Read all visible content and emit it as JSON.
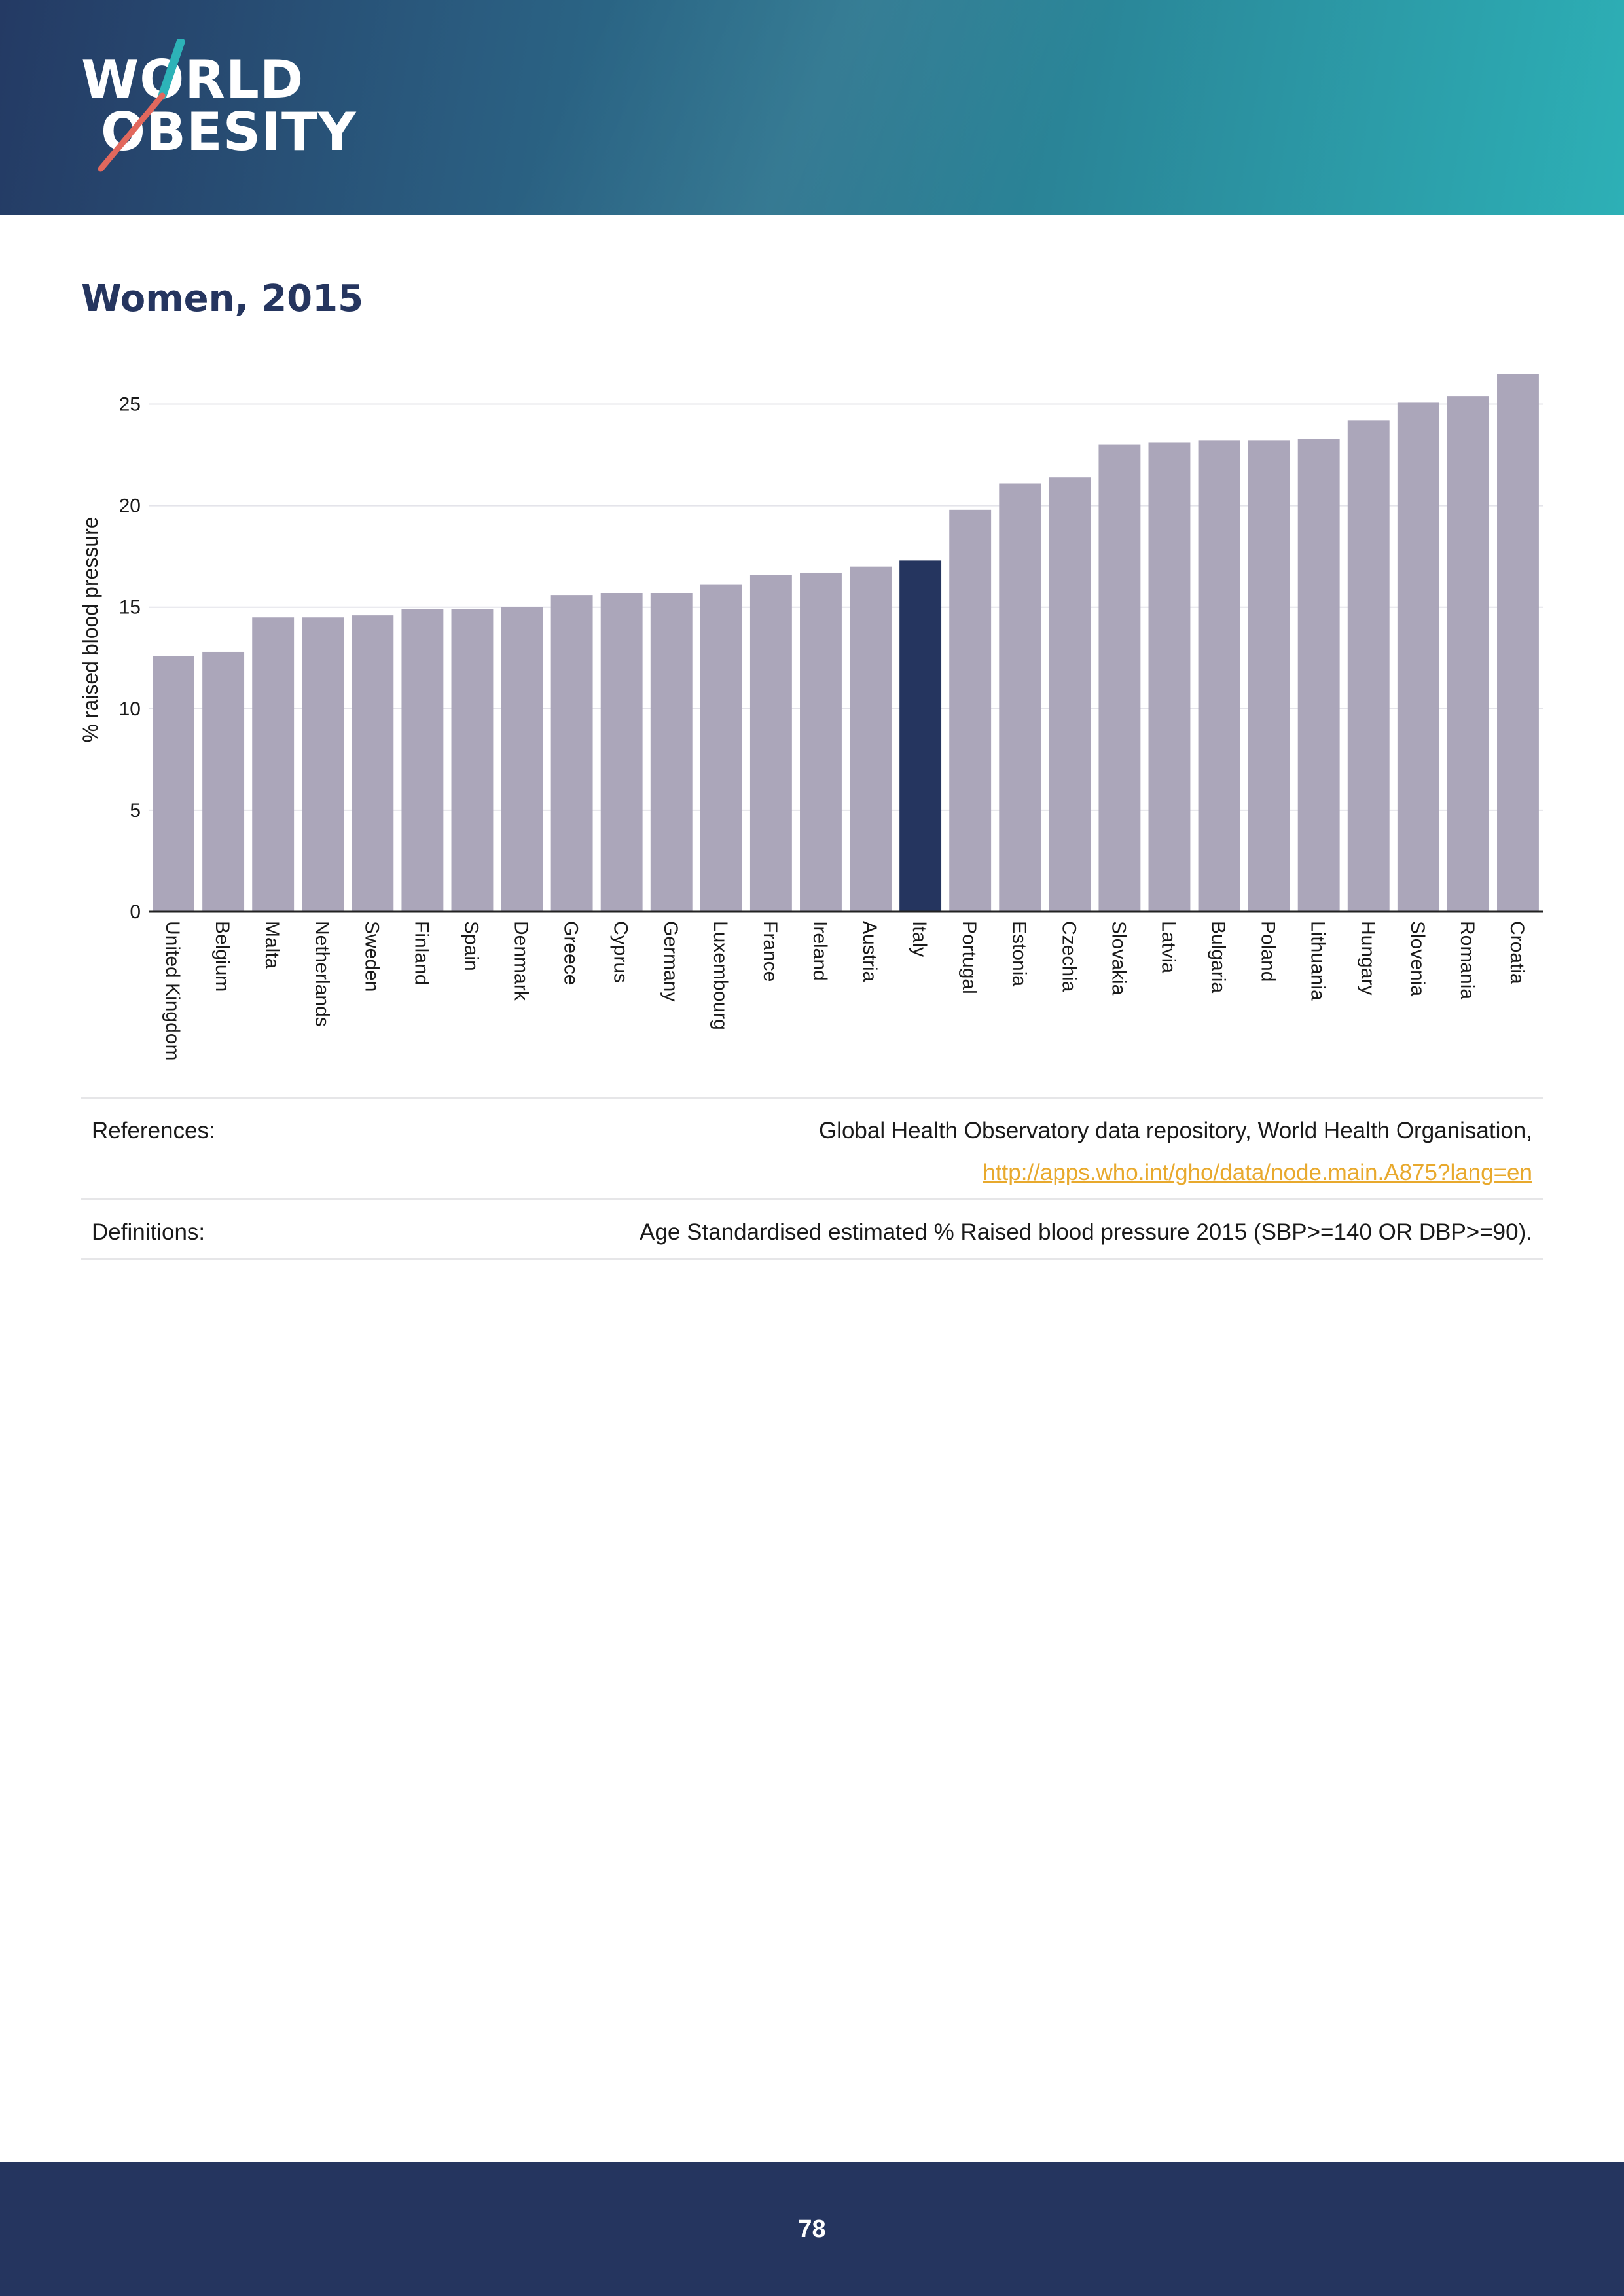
{
  "header": {
    "logo_line1": "WORLD",
    "logo_line2": "OBESITY",
    "gradient_start": "#243a64",
    "gradient_end": "#2db0b6"
  },
  "page_title": "Women, 2015",
  "chart_data": {
    "type": "bar",
    "title": "Women, 2015",
    "xlabel": "",
    "ylabel": "% raised blood pressure",
    "ylim": [
      0,
      26.5
    ],
    "yticks": [
      0,
      5,
      10,
      15,
      20,
      25
    ],
    "grid": true,
    "bar_color": "#aba6ba",
    "highlight_color": "#25355f",
    "highlight_category": "Italy",
    "categories": [
      "United Kingdom",
      "Belgium",
      "Malta",
      "Netherlands",
      "Sweden",
      "Finland",
      "Spain",
      "Denmark",
      "Greece",
      "Cyprus",
      "Germany",
      "Luxembourg",
      "France",
      "Ireland",
      "Austria",
      "Italy",
      "Portugal",
      "Estonia",
      "Czechia",
      "Slovakia",
      "Latvia",
      "Bulgaria",
      "Poland",
      "Lithuania",
      "Hungary",
      "Slovenia",
      "Romania",
      "Croatia"
    ],
    "values": [
      12.6,
      12.8,
      14.5,
      14.5,
      14.6,
      14.9,
      14.9,
      15.0,
      15.6,
      15.7,
      15.7,
      16.1,
      16.6,
      16.7,
      17.0,
      17.3,
      19.8,
      21.1,
      21.4,
      23.0,
      23.1,
      23.2,
      23.2,
      23.3,
      24.2,
      25.1,
      25.4,
      26.5
    ]
  },
  "references": {
    "label": "References:",
    "text": "Global Health Observatory data repository, World Health Organisation,",
    "link": "http://apps.who.int/gho/data/node.main.A875?lang=en"
  },
  "definitions": {
    "label": "Definitions:",
    "text": "Age Standardised estimated % Raised blood pressure 2015 (SBP>=140 OR DBP>=90)."
  },
  "footer": {
    "page_number": "78"
  }
}
